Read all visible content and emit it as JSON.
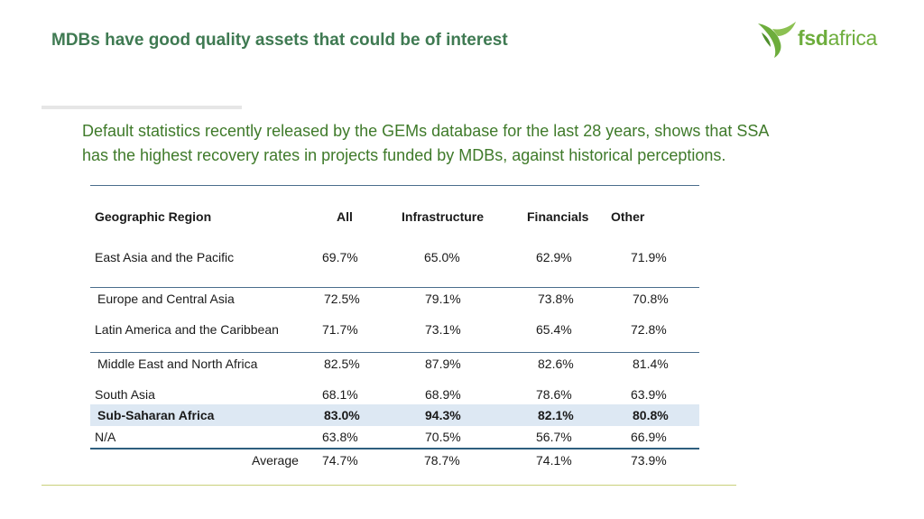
{
  "slide": {
    "title": "MDBs have good quality assets that could be of interest",
    "logo": {
      "brand_left": "fsd",
      "brand_right": "africa",
      "brand_color": "#6dad3c",
      "icon": "bird-logo-icon"
    },
    "subtitle_line1": "Default statistics recently released by the GEMs database for the last 28 years, shows that SSA",
    "subtitle_line2": "has the highest recovery rates in projects funded by MDBs, against historical perceptions."
  },
  "table": {
    "headers": [
      "Geographic Region",
      "All",
      "Infrastructure",
      "Financials",
      "Other"
    ],
    "rows": [
      {
        "region": "East Asia and the Pacific",
        "all": "69.7%",
        "infra": "65.0%",
        "fin": "62.9%",
        "other": "71.9%"
      },
      {
        "region": "Europe and Central Asia",
        "all": "72.5%",
        "infra": "79.1%",
        "fin": "73.8%",
        "other": "70.8%"
      },
      {
        "region": "Latin America and the Caribbean",
        "all": "71.7%",
        "infra": "73.1%",
        "fin": "65.4%",
        "other": "72.8%"
      },
      {
        "region": "Middle East and North Africa",
        "all": "82.5%",
        "infra": "87.9%",
        "fin": "82.6%",
        "other": "81.4%"
      },
      {
        "region": "South Asia",
        "all": "68.1%",
        "infra": "68.9%",
        "fin": "78.6%",
        "other": "63.9%"
      },
      {
        "region": "Sub-Saharan Africa",
        "all": "83.0%",
        "infra": "94.3%",
        "fin": "82.1%",
        "other": "80.8%"
      },
      {
        "region": "N/A",
        "all": "63.8%",
        "infra": "70.5%",
        "fin": "56.7%",
        "other": "66.9%"
      },
      {
        "region": "Average",
        "all": "74.7%",
        "infra": "78.7%",
        "fin": "74.1%",
        "other": "73.9%"
      }
    ],
    "highlight_color": "#dde8f3"
  }
}
